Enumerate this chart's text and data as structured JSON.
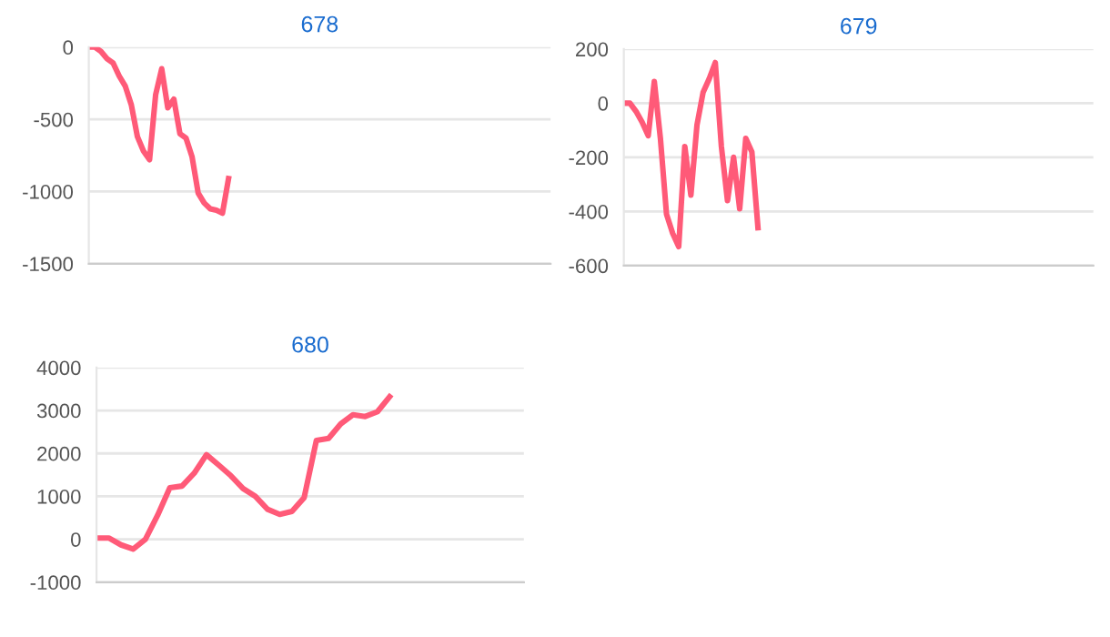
{
  "chart_data": [
    {
      "type": "line",
      "title": "678",
      "categories": [
        null,
        null,
        null,
        null,
        null,
        null,
        null,
        null,
        null,
        null,
        null,
        null,
        null,
        null,
        null,
        null,
        null,
        null,
        null,
        null,
        null,
        null,
        null,
        null,
        null,
        null,
        null,
        null,
        null,
        null,
        null,
        null,
        null,
        null,
        null,
        null,
        null,
        null,
        null,
        null,
        null,
        null,
        null,
        null,
        null,
        null,
        null,
        null,
        null,
        null,
        null,
        null,
        null,
        null,
        null,
        null,
        null,
        null,
        null,
        null,
        null,
        null,
        null,
        null,
        null,
        null,
        null,
        null,
        null,
        null,
        null,
        null,
        null,
        null,
        null,
        null,
        null
      ],
      "series": [
        {
          "color": "#ff5a78",
          "values": [
            0,
            0,
            -30,
            -80,
            -110,
            -200,
            -270,
            -400,
            -620,
            -720,
            -780,
            -330,
            -150,
            -420,
            -360,
            -600,
            -630,
            -760,
            -1010,
            -1080,
            -1120,
            -1130,
            -1150,
            -910,
            null,
            null,
            null,
            null,
            null,
            null,
            null,
            null,
            null,
            null,
            null,
            null,
            null,
            null,
            null,
            null,
            null,
            null,
            null,
            null,
            null,
            null,
            null,
            null,
            null,
            null,
            null,
            null,
            null,
            null,
            null,
            null,
            null,
            null,
            null,
            null,
            null,
            null,
            null,
            null,
            null,
            null,
            null,
            null,
            null,
            null,
            null,
            null,
            null,
            null,
            null,
            null,
            null
          ]
        }
      ],
      "ylim": [
        -1500,
        0
      ],
      "yticks": [
        -1500,
        -1000,
        -500,
        0
      ],
      "grid": "y",
      "legend": false,
      "marker": "none",
      "line_style": "solid"
    },
    {
      "type": "line",
      "title": "679",
      "categories": [
        null,
        null,
        null,
        null,
        null,
        null,
        null,
        null,
        null,
        null,
        null,
        null,
        null,
        null,
        null,
        null,
        null,
        null,
        null,
        null,
        null,
        null,
        null,
        null,
        null,
        null,
        null,
        null,
        null,
        null,
        null,
        null,
        null,
        null,
        null,
        null,
        null,
        null,
        null,
        null,
        null,
        null,
        null,
        null,
        null,
        null,
        null,
        null,
        null,
        null,
        null,
        null,
        null,
        null,
        null,
        null,
        null,
        null,
        null,
        null,
        null,
        null,
        null,
        null,
        null,
        null,
        null,
        null,
        null,
        null,
        null,
        null,
        null,
        null,
        null,
        null,
        null,
        null
      ],
      "series": [
        {
          "color": "#ff5a78",
          "values": [
            0,
            0,
            -30,
            -70,
            -120,
            80,
            -130,
            -410,
            -480,
            -530,
            -160,
            -340,
            -80,
            40,
            90,
            150,
            -160,
            -360,
            -200,
            -390,
            -130,
            -180,
            -460,
            null,
            null,
            null,
            null,
            null,
            null,
            null,
            null,
            null,
            null,
            null,
            null,
            null,
            null,
            null,
            null,
            null,
            null,
            null,
            null,
            null,
            null,
            null,
            null,
            null,
            null,
            null,
            null,
            null,
            null,
            null,
            null,
            null,
            null,
            null,
            null,
            null,
            null,
            null,
            null,
            null,
            null,
            null,
            null,
            null,
            null,
            null,
            null,
            null,
            null,
            null,
            null,
            null,
            null,
            null
          ]
        }
      ],
      "ylim": [
        -600,
        200
      ],
      "yticks": [
        -600,
        -400,
        -200,
        0,
        200
      ],
      "grid": "y",
      "legend": false,
      "marker": "none",
      "line_style": "solid"
    },
    {
      "type": "line",
      "title": "680",
      "categories": [
        null,
        null,
        null,
        null,
        null,
        null,
        null,
        null,
        null,
        null,
        null,
        null,
        null,
        null,
        null,
        null,
        null,
        null,
        null,
        null,
        null,
        null,
        null,
        null,
        null,
        null,
        null,
        null,
        null,
        null,
        null,
        null,
        null,
        null,
        null,
        null
      ],
      "series": [
        {
          "color": "#ff5a78",
          "values": [
            30,
            30,
            -130,
            -230,
            0,
            560,
            1200,
            1240,
            1540,
            1970,
            1730,
            1480,
            1180,
            1000,
            700,
            580,
            650,
            970,
            2300,
            2350,
            2690,
            2900,
            2860,
            2970,
            3320,
            null,
            null,
            null,
            null,
            null,
            null,
            null,
            null,
            null,
            null,
            null
          ]
        }
      ],
      "ylim": [
        -1000,
        4000
      ],
      "yticks": [
        -1000,
        0,
        1000,
        2000,
        3000,
        4000
      ],
      "grid": "y",
      "legend": false,
      "marker": "none",
      "line_style": "solid"
    }
  ]
}
